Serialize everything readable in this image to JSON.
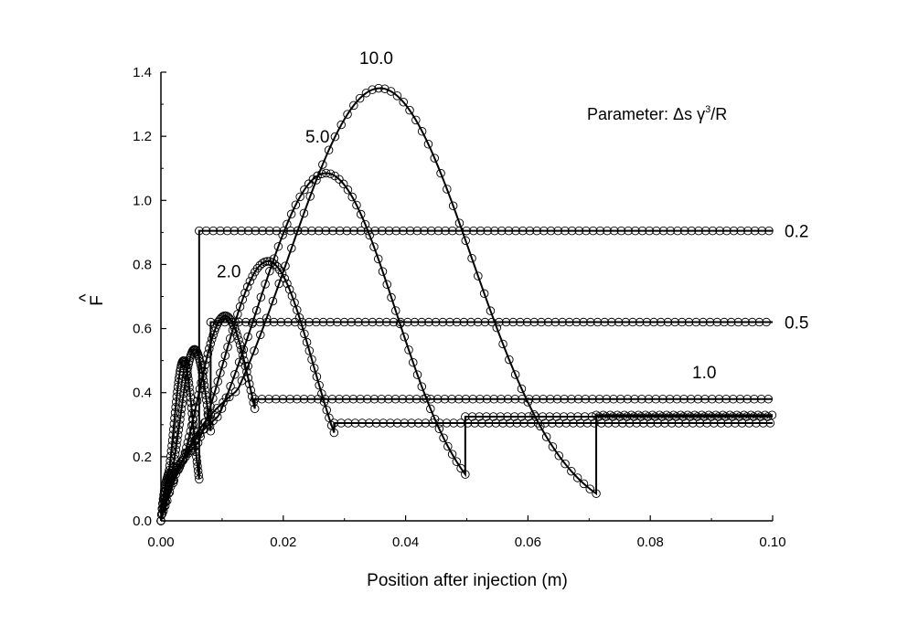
{
  "chart_data": {
    "type": "line",
    "title": "",
    "xlabel": "Position after injection (m)",
    "ylabel": "F",
    "ylabel_accent": "^",
    "xlim": [
      0.0,
      0.1
    ],
    "ylim": [
      0.0,
      1.4
    ],
    "xticks": [
      "0.00",
      "0.02",
      "0.04",
      "0.06",
      "0.08",
      "0.10"
    ],
    "yticks": [
      "0.0",
      "0.2",
      "0.4",
      "0.6",
      "0.8",
      "1.0",
      "1.2",
      "1.4"
    ],
    "grid": false,
    "annotation": {
      "prefix": "Parameter: ",
      "delta": "Δ",
      "s": "s γ",
      "sup": "3",
      "suffix": "/R"
    },
    "series": [
      {
        "label": "0.2",
        "peak_x": 0.0037,
        "peak_y": 0.5,
        "drop_y": 0.13,
        "plateau": 0.905
      },
      {
        "label": "0.5",
        "peak_x": 0.0055,
        "peak_y": 0.535,
        "drop_y": 0.28,
        "plateau": 0.62
      },
      {
        "label": "1.0",
        "peak_x": 0.0105,
        "peak_y": 0.64,
        "drop_y": 0.35,
        "plateau": 0.38
      },
      {
        "label": "2.0",
        "peak_x": 0.0175,
        "peak_y": 0.81,
        "drop_y": 0.275,
        "plateau": 0.305
      },
      {
        "label": "5.0",
        "peak_x": 0.027,
        "peak_y": 1.085,
        "drop_y": 0.145,
        "plateau": 0.325
      },
      {
        "label": "10.0",
        "peak_x": 0.0358,
        "peak_y": 1.35,
        "drop_y": 0.085,
        "plateau": 0.33
      }
    ]
  }
}
